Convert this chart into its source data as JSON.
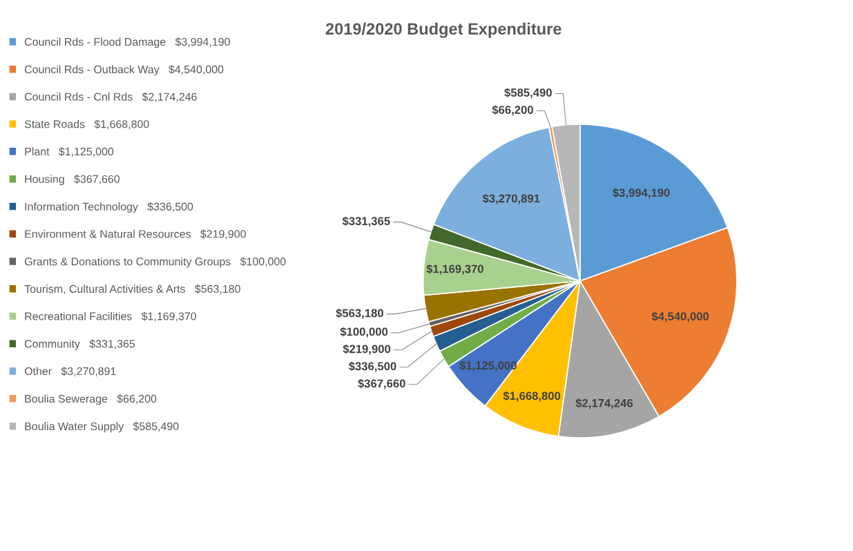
{
  "chart_data": {
    "type": "pie",
    "title": "2019/2020 Budget Expenditure",
    "categories": [
      "Council Rds - Flood Damage",
      "Council Rds - Outback Way",
      "Council Rds - Cnl Rds",
      "State Roads",
      "Plant",
      "Housing",
      "Information Technology",
      "Environment & Natural Resources",
      "Grants & Donations to Community Groups",
      "Tourism, Cultural Activities & Arts",
      "Recreational Facilities",
      "Community",
      "Other",
      "Boulia Sewerage",
      "Boulia Water Supply"
    ],
    "values": [
      3994190,
      4540000,
      2174246,
      1668800,
      1125000,
      367660,
      336500,
      219900,
      100000,
      563180,
      1169370,
      331365,
      3270891,
      66200,
      585490
    ],
    "value_labels": [
      "$3,994,190",
      "$4,540,000",
      "$2,174,246",
      "$1,668,800",
      "$1,125,000",
      "$367,660",
      "$336,500",
      "$219,900",
      "$100,000",
      "$563,180",
      "$1,169,370",
      "$331,365",
      "$3,270,891",
      "$66,200",
      "$585,490"
    ],
    "colors": [
      "#5b9bd5",
      "#ed7d31",
      "#a5a5a5",
      "#ffc000",
      "#4472c4",
      "#70ad47",
      "#255e91",
      "#9e480e",
      "#636363",
      "#997300",
      "#a9d18e",
      "#43682b",
      "#7cafdd",
      "#f1975a",
      "#b7b7b7"
    ],
    "legend": "left"
  }
}
